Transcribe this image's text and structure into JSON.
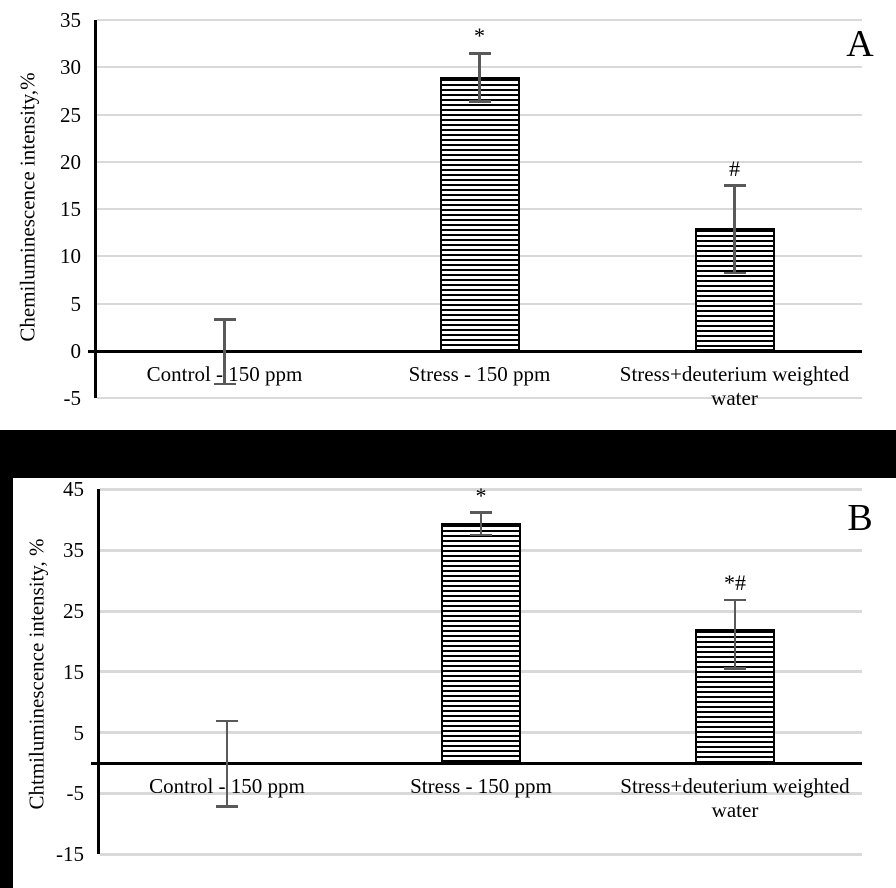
{
  "colors": {
    "grid": "#d9d9d9",
    "axis": "#000000",
    "error_bar": "#595959",
    "bar_fill": "#ffffff",
    "bar_hatch": "#000000",
    "divider": "#000000",
    "text": "#000000"
  },
  "chart_data": [
    {
      "type": "bar",
      "panel_label": "A",
      "title": "",
      "xlabel": "",
      "ylabel": "Chemiluminescence intensity,%",
      "categories": [
        "Control - 150 ppm",
        "Stress - 150 ppm",
        "Stress+deuterium weighted water"
      ],
      "category_lines": [
        [
          "Control - 150 ppm"
        ],
        [
          "Stress - 150 ppm"
        ],
        [
          "Stress+deuterium weighted",
          "water"
        ]
      ],
      "values": [
        0,
        29,
        13
      ],
      "error_plus": [
        3.3,
        2.5,
        4.5
      ],
      "error_minus": [
        3.5,
        2.6,
        4.75
      ],
      "sig_markers": [
        "",
        "*",
        "#"
      ],
      "ylim": [
        -5,
        35
      ],
      "yticks": [
        35,
        30,
        25,
        20,
        15,
        10,
        5,
        0,
        -5
      ],
      "bar_style": "horizontal-line-hatch",
      "grid": true,
      "legend": "none"
    },
    {
      "type": "bar",
      "panel_label": "B",
      "title": "",
      "xlabel": "",
      "ylabel": "Chtmiluminescence intensity, %",
      "categories": [
        "Control - 150 ppm",
        "Stress - 150 ppm",
        "Stress+deuterium weighted water"
      ],
      "category_lines": [
        [
          "Control - 150 ppm"
        ],
        [
          "Stress - 150 ppm"
        ],
        [
          "Stress+deuterium weighted",
          "water"
        ]
      ],
      "values": [
        0,
        39.4,
        22
      ],
      "error_plus": [
        6.9,
        1.8,
        4.8
      ],
      "error_minus": [
        7.2,
        1.9,
        6.5
      ],
      "sig_markers": [
        "",
        "*",
        "*#"
      ],
      "ylim": [
        -15,
        45
      ],
      "yticks": [
        45,
        35,
        25,
        15,
        5,
        -5,
        -15
      ],
      "bar_style": "horizontal-line-hatch",
      "grid": true,
      "legend": "none"
    }
  ]
}
